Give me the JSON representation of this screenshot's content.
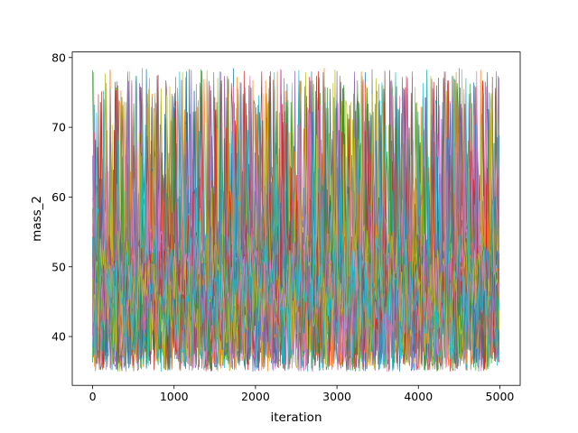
{
  "chart_data": {
    "type": "line",
    "title": "",
    "xlabel": "iteration",
    "ylabel": "mass_2",
    "xlim": [
      -250,
      5250
    ],
    "ylim": [
      33.0,
      80.8
    ],
    "xticks": [
      0,
      1000,
      2000,
      3000,
      4000,
      5000
    ],
    "xtick_labels": [
      "0",
      "1000",
      "2000",
      "3000",
      "4000",
      "5000"
    ],
    "yticks": [
      40,
      50,
      60,
      70,
      80
    ],
    "ytick_labels": [
      "40",
      "50",
      "60",
      "70",
      "80"
    ],
    "grid": false,
    "legend": "none",
    "n_walkers": 40,
    "n_iterations": 5001,
    "value_range": [
      35.0,
      78.5
    ],
    "bulk_range": [
      37.0,
      57.0
    ],
    "initial_spread": [
      35.0,
      76.5
    ],
    "series_colors": [
      "#1f77b4",
      "#ff7f0e",
      "#2ca02c",
      "#d62728",
      "#9467bd",
      "#8c564b",
      "#e377c2",
      "#7f7f7f",
      "#bcbd22",
      "#17becf"
    ]
  }
}
